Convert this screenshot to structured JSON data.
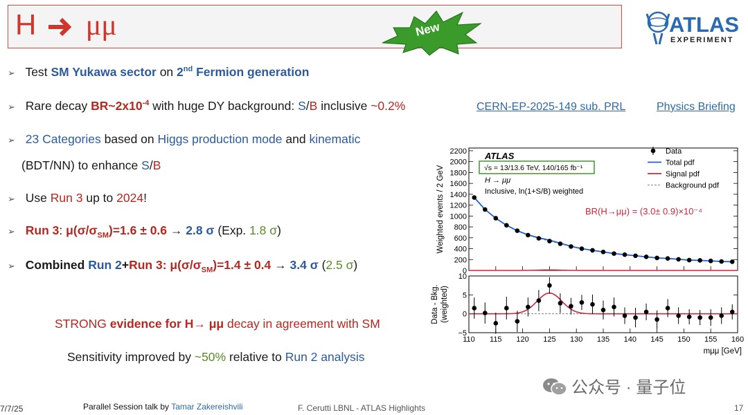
{
  "title": {
    "prefix": "H",
    "tail": "μμ"
  },
  "badge": "New",
  "logo": {
    "name": "ATLAS",
    "sub": "EXPERIMENT"
  },
  "bullets": {
    "b1": {
      "a": "Test",
      "b": "SM Yukawa sector",
      "c": "on",
      "d": "2",
      "e": "nd",
      "f": "Fermion generation"
    },
    "b2": {
      "a": "Rare decay",
      "b": "BR~2x10",
      "c": "-4",
      "d": "with huge DY background:",
      "e": "S",
      "f": "/",
      "g": "B",
      "h": "inclusive",
      "i": "~0.2%"
    },
    "b3": {
      "a": "23 Categories",
      "b": "based on",
      "c": "Higgs production mode",
      "d": "and",
      "e": "kinematic"
    },
    "b3b": {
      "a": "(BDT/NN) to enhance",
      "b": "S",
      "c": "/",
      "d": "B"
    },
    "b4": {
      "a": "Use",
      "b": "Run 3",
      "c": "up to",
      "d": "2024",
      "e": "!"
    },
    "b5": {
      "a": "Run 3",
      "b": ":",
      "c": "μ(σ/σ",
      "d": "SM",
      "e": ")=1.6 ± 0.6",
      "f": "→",
      "g": "2.8 σ",
      "h": "(Exp.",
      "i": "1.8 σ",
      "j": ")"
    },
    "b6": {
      "a": "Combined",
      "b": "Run 2",
      "c": "+",
      "d": "Run 3:",
      "e": "μ(σ/σ",
      "f": "SM",
      "g": ")=1.4 ± 0.4",
      "h": "→",
      "i": "3.4 σ",
      "j": "(",
      "k": "2.5 σ",
      "l": ")"
    }
  },
  "links": {
    "paper": "CERN-EP-2025-149 sub. PRL",
    "briefing": "Physics Briefing"
  },
  "strong": {
    "a": "STRONG",
    "b": "evidence for H→ μμ",
    "c": "decay in agreement with SM"
  },
  "sens": {
    "a": "Sensitivity improved by",
    "b": "~50%",
    "c": "relative to",
    "d": "Run 2 analysis"
  },
  "footer": {
    "date": "7/7/25",
    "talk": "Parallel Session talk by",
    "speaker": "Tamar Zakereishvili",
    "center": "F. Cerutti LBNL - ATLAS Highlights",
    "page": "17"
  },
  "watermark": "公众号 · 量子位",
  "colors": {
    "data": "#000000",
    "total_pdf": "#1f5fd6",
    "signal_pdf": "#c8283c",
    "background_pdf": "#7f7f7f",
    "title": "#d0352b",
    "badge": "#3a9a2a"
  },
  "chart_data": {
    "type": "scatter",
    "atlas_label": "ATLAS",
    "energy_label": "√s = 13/13.6 TeV, 140/165 fb⁻¹",
    "process_label": "H → μμ",
    "weight_label": "Inclusive, ln(1+S/B) weighted",
    "result_label": "BR(H→μμ) = (3.0± 0.9)×10⁻⁴",
    "legend": [
      "Data",
      "Total pdf",
      "Signal pdf",
      "Background pdf"
    ],
    "legend_position": "top-right",
    "top_panel": {
      "ylabel": "Weighted events / 2 GeV",
      "ylim": [
        0,
        2250
      ],
      "yticks": [
        0,
        200,
        400,
        600,
        800,
        1000,
        1200,
        1400,
        1600,
        1800,
        2000,
        2200
      ],
      "x": [
        111,
        113,
        115,
        117,
        119,
        121,
        123,
        125,
        127,
        129,
        131,
        133,
        135,
        137,
        139,
        141,
        143,
        145,
        147,
        149,
        151,
        153,
        155,
        157,
        159
      ],
      "data": [
        1340,
        1120,
        960,
        830,
        730,
        650,
        590,
        540,
        490,
        440,
        400,
        370,
        340,
        310,
        290,
        270,
        250,
        230,
        220,
        205,
        190,
        185,
        175,
        165,
        160
      ],
      "signal_level": 10
    },
    "bottom_panel": {
      "ylabel": "Data - Bkg. (weighted)",
      "ylim": [
        -5,
        10
      ],
      "yticks": [
        -5,
        0,
        5,
        10
      ],
      "x": [
        111,
        113,
        115,
        117,
        119,
        121,
        123,
        125,
        127,
        129,
        131,
        133,
        135,
        137,
        139,
        141,
        143,
        145,
        147,
        149,
        151,
        153,
        155,
        157,
        159
      ],
      "values": [
        1.5,
        0.2,
        -2.5,
        1.5,
        -2.0,
        1.8,
        3.5,
        7.5,
        2.8,
        2.0,
        3.0,
        2.5,
        1.0,
        1.8,
        -0.5,
        -1.0,
        0.5,
        -1.5,
        1.5,
        -0.5,
        -0.8,
        -1.0,
        -1.0,
        -0.5,
        0.5
      ],
      "errors": [
        2.8,
        2.8,
        2.8,
        3.0,
        2.8,
        2.5,
        2.8,
        2.2,
        2.6,
        2.2,
        2.0,
        2.6,
        2.5,
        2.5,
        2.2,
        2.6,
        2.2,
        2.4,
        2.4,
        2.2,
        2.0,
        2.0,
        2.2,
        2.2,
        2.0
      ],
      "signal_peak": 5.5,
      "signal_mean": 125,
      "signal_width": 2.3
    },
    "xlabel": "m_μμ [GeV]",
    "xlim": [
      110,
      160
    ],
    "xticks": [
      110,
      115,
      120,
      125,
      130,
      135,
      140,
      145,
      150,
      155,
      160
    ]
  }
}
